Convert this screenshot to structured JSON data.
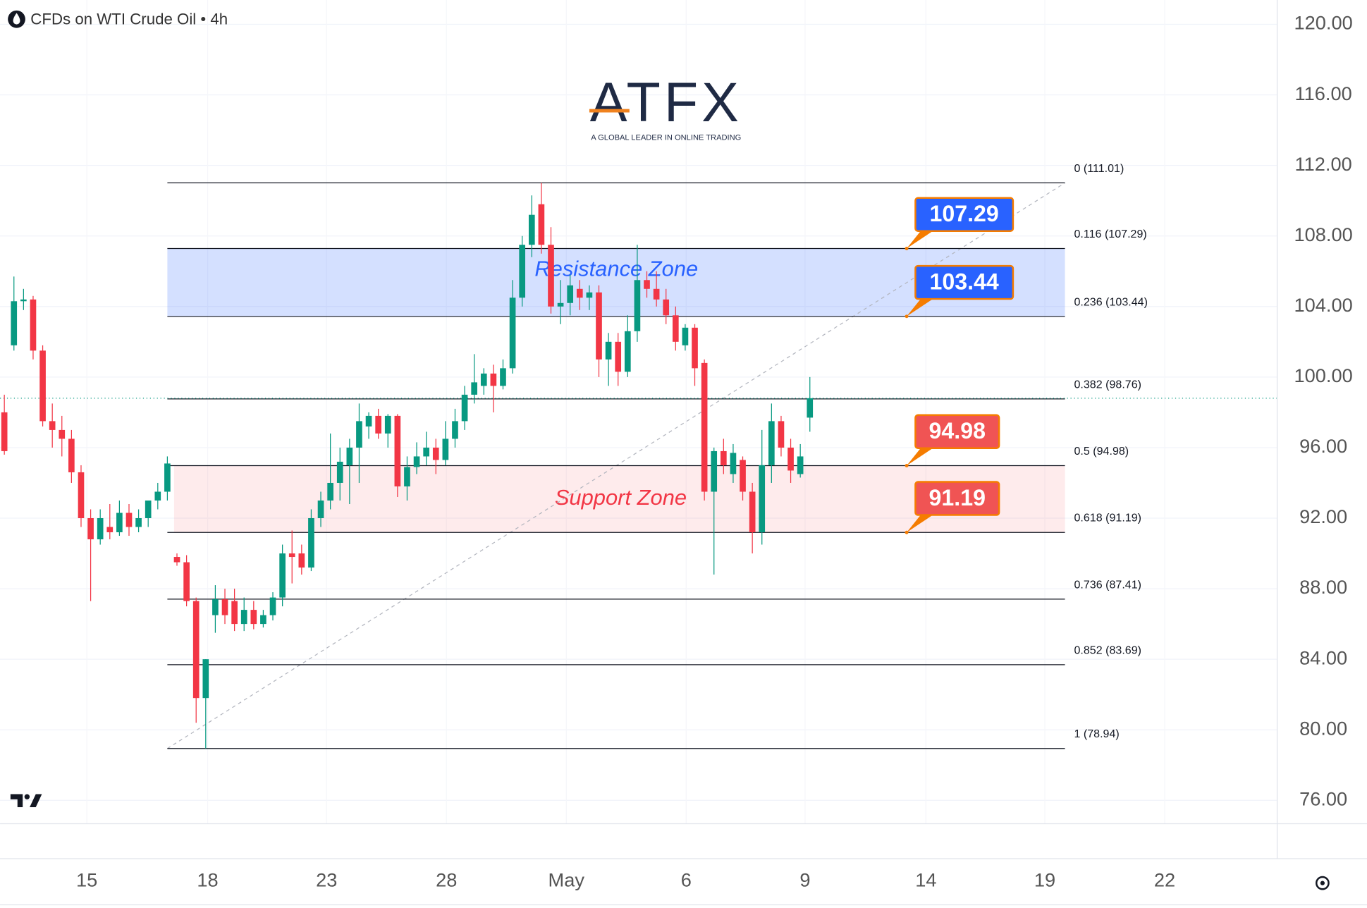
{
  "chart_data": {
    "type": "candlestick",
    "title": "CFDs on WTI Crude Oil • 4h",
    "logo": {
      "name": "ATFX",
      "tagline": "A GLOBAL LEADER IN ONLINE TRADING"
    },
    "up_color": "#089981",
    "down_color": "#f23645",
    "candles": [
      [
        98,
        99,
        95.6,
        95.8
      ],
      [
        101.8,
        105.7,
        101.5,
        104.3
      ],
      [
        104.3,
        105,
        103.8,
        104.4
      ],
      [
        104.4,
        104.6,
        101,
        101.5
      ],
      [
        101.5,
        101.8,
        97.2,
        97.5
      ],
      [
        97.5,
        98.5,
        96,
        97
      ],
      [
        97,
        97.8,
        95.5,
        96.5
      ],
      [
        96.5,
        97,
        94,
        94.6
      ],
      [
        94.6,
        95,
        91.5,
        92
      ],
      [
        92,
        92.5,
        87.3,
        90.8
      ],
      [
        90.8,
        92.5,
        90.5,
        92
      ],
      [
        91.5,
        92.8,
        90.8,
        91.2
      ],
      [
        91.2,
        93,
        91,
        92.3
      ],
      [
        92.3,
        92.8,
        91,
        91.5
      ],
      [
        91.5,
        92.5,
        91.2,
        92
      ],
      [
        92,
        93,
        91.5,
        93
      ],
      [
        93,
        94,
        92.5,
        93.5
      ],
      [
        93.5,
        95.5,
        93,
        95.1
      ],
      [
        89.8,
        90,
        89.3,
        89.5
      ],
      [
        89.5,
        89.9,
        87,
        87.3
      ],
      [
        87.3,
        87.5,
        80.4,
        81.8
      ],
      [
        81.8,
        84,
        78.94,
        84
      ],
      [
        86.5,
        88.2,
        85.5,
        87.4
      ],
      [
        87.4,
        88,
        86,
        86.5
      ],
      [
        87.3,
        88,
        85.6,
        86
      ],
      [
        86,
        87.5,
        85.6,
        86.8
      ],
      [
        86.8,
        87.3,
        85.7,
        86
      ],
      [
        86,
        86.8,
        85.8,
        86.5
      ],
      [
        86.5,
        87.8,
        86.2,
        87.5
      ],
      [
        87.5,
        90.5,
        87,
        90
      ],
      [
        90,
        91.3,
        88.3,
        89.8
      ],
      [
        90,
        90.5,
        88.8,
        89.2
      ],
      [
        89.2,
        92.5,
        89,
        92
      ],
      [
        92,
        93.5,
        91.5,
        93
      ],
      [
        93,
        96.8,
        92.5,
        94
      ],
      [
        94,
        96,
        93,
        95.2
      ],
      [
        95,
        96.5,
        92.8,
        96
      ],
      [
        96,
        98.5,
        94,
        97.5
      ],
      [
        97.2,
        98,
        96.5,
        97.8
      ],
      [
        97.8,
        98.2,
        96.5,
        96.8
      ],
      [
        96.8,
        97.9,
        96,
        97.8
      ],
      [
        97.8,
        97.9,
        93.2,
        93.8
      ],
      [
        93.8,
        95.5,
        93,
        94.9
      ],
      [
        94.9,
        96.3,
        94.5,
        95.5
      ],
      [
        95.5,
        96.9,
        95,
        96
      ],
      [
        96,
        96.5,
        94.5,
        95.3
      ],
      [
        95.3,
        97.5,
        95,
        96.5
      ],
      [
        96.5,
        98.2,
        96,
        97.5
      ],
      [
        97.5,
        99.5,
        97,
        99
      ],
      [
        99,
        101.3,
        98.5,
        99.7
      ],
      [
        99.5,
        100.5,
        99,
        100.2
      ],
      [
        100.2,
        100.7,
        98,
        99.5
      ],
      [
        99.5,
        101,
        99.3,
        100.5
      ],
      [
        100.5,
        105.5,
        100.2,
        104.5
      ],
      [
        104.5,
        108,
        104,
        107.5
      ],
      [
        107.5,
        110.3,
        106.8,
        109.2
      ],
      [
        109.8,
        111.01,
        107,
        107.5
      ],
      [
        107.5,
        108.5,
        103.6,
        104
      ],
      [
        104,
        105.5,
        103,
        104.2
      ],
      [
        104.2,
        105.8,
        103.5,
        105.2
      ],
      [
        105,
        105.5,
        103.8,
        104.5
      ],
      [
        104.5,
        105.2,
        103.8,
        104.8
      ],
      [
        104.8,
        105.2,
        100,
        101
      ],
      [
        101,
        102.5,
        99.5,
        102
      ],
      [
        102,
        102.5,
        99.5,
        100.3
      ],
      [
        100.3,
        103.5,
        100,
        102.6
      ],
      [
        102.6,
        107.5,
        102,
        105.5
      ],
      [
        105.5,
        106,
        104.5,
        105
      ],
      [
        105,
        106,
        104,
        104.4
      ],
      [
        104.4,
        105,
        103,
        103.5
      ],
      [
        103.5,
        104,
        101.5,
        102
      ],
      [
        101.8,
        103,
        101.5,
        102.8
      ],
      [
        102.8,
        103,
        99.5,
        100.5
      ],
      [
        100.8,
        101,
        93,
        93.5
      ],
      [
        93.5,
        96,
        88.8,
        95.8
      ],
      [
        95.8,
        96.5,
        94.5,
        95
      ],
      [
        94.5,
        96.2,
        94,
        95.7
      ],
      [
        95.3,
        95.5,
        93,
        93.5
      ],
      [
        93.5,
        94,
        90,
        91.2
      ],
      [
        91.2,
        97,
        90.5,
        95
      ],
      [
        95,
        98.5,
        94,
        97.5
      ],
      [
        97.5,
        97.8,
        95.5,
        96
      ],
      [
        96,
        96.5,
        94,
        94.7
      ],
      [
        94.5,
        96.2,
        94.3,
        95.5
      ],
      [
        97.7,
        100,
        96.9,
        98.8
      ]
    ],
    "xlim": [
      -0.45,
      132.73
    ],
    "xticks": [
      {
        "value": 8.6,
        "label": "15"
      },
      {
        "value": 21.2,
        "label": "18"
      },
      {
        "value": 33.6,
        "label": "23"
      },
      {
        "value": 46.1,
        "label": "28"
      },
      {
        "value": 58.6,
        "label": "May"
      },
      {
        "value": 71.1,
        "label": "6"
      },
      {
        "value": 83.5,
        "label": "9"
      },
      {
        "value": 96.1,
        "label": "14"
      },
      {
        "value": 108.5,
        "label": "19"
      },
      {
        "value": 121,
        "label": "22"
      }
    ],
    "ylim": [
      74.67,
      121.38
    ],
    "yticks": [
      {
        "value": 120,
        "label": "120.00"
      },
      {
        "value": 116,
        "label": "116.00"
      },
      {
        "value": 112,
        "label": "112.00"
      },
      {
        "value": 108,
        "label": "108.00"
      },
      {
        "value": 104,
        "label": "104.00"
      },
      {
        "value": 100,
        "label": "100.00"
      },
      {
        "value": 96,
        "label": "96.00"
      },
      {
        "value": 92,
        "label": "92.00"
      },
      {
        "value": 88,
        "label": "88.00"
      },
      {
        "value": 84,
        "label": "84.00"
      },
      {
        "value": 80,
        "label": "80.00"
      },
      {
        "value": 76,
        "label": "76.00"
      }
    ],
    "grid": true,
    "fib_levels": [
      {
        "value": 111.01,
        "label": "0 (111.01)"
      },
      {
        "value": 107.29,
        "label": "0.116 (107.29)"
      },
      {
        "value": 103.44,
        "label": "0.236 (103.44)"
      },
      {
        "value": 98.76,
        "label": "0.382 (98.76)"
      },
      {
        "value": 94.98,
        "label": "0.5 (94.98)"
      },
      {
        "value": 91.19,
        "label": "0.618 (91.19)"
      },
      {
        "value": 87.41,
        "label": "0.736 (87.41)"
      },
      {
        "value": 83.69,
        "label": "0.852 (83.69)"
      },
      {
        "value": 78.94,
        "label": "1 (78.94)"
      }
    ],
    "zones": [
      {
        "name": "Resistance Zone",
        "low": 103.44,
        "high": 107.29,
        "color": "#2962ff"
      },
      {
        "name": "Support Zone",
        "low": 91.19,
        "high": 94.98,
        "color": "#f23645"
      }
    ],
    "callouts": [
      {
        "value": 107.29,
        "color": "#2962ff"
      },
      {
        "value": 103.44,
        "color": "#2962ff"
      },
      {
        "value": 94.98,
        "color": "#f05454"
      },
      {
        "value": 91.19,
        "color": "#f05454"
      }
    ]
  }
}
